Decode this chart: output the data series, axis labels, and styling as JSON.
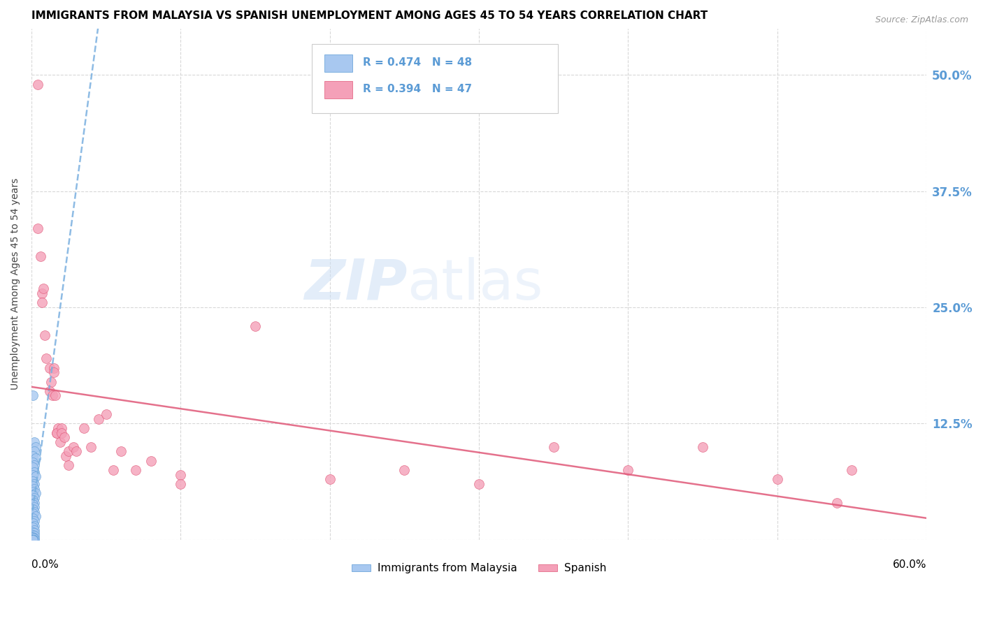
{
  "title": "IMMIGRANTS FROM MALAYSIA VS SPANISH UNEMPLOYMENT AMONG AGES 45 TO 54 YEARS CORRELATION CHART",
  "source": "Source: ZipAtlas.com",
  "ylabel": "Unemployment Among Ages 45 to 54 years",
  "ytick_vals": [
    0.0,
    0.125,
    0.25,
    0.375,
    0.5
  ],
  "ytick_labels": [
    "",
    "12.5%",
    "25.0%",
    "37.5%",
    "50.0%"
  ],
  "xlim": [
    0.0,
    0.6
  ],
  "ylim": [
    0.0,
    0.55
  ],
  "watermark_zip": "ZIP",
  "watermark_atlas": "atlas",
  "series": [
    {
      "label": "Immigrants from Malaysia",
      "color": "#a8c8f0",
      "edge_color": "#5b9bd5",
      "trend_color": "#7ab0e0",
      "trend_style": "--",
      "R": 0.474,
      "N": 48,
      "points": [
        [
          0.001,
          0.155
        ],
        [
          0.002,
          0.105
        ],
        [
          0.003,
          0.1
        ],
        [
          0.002,
          0.095
        ],
        [
          0.001,
          0.09
        ],
        [
          0.003,
          0.088
        ],
        [
          0.001,
          0.083
        ],
        [
          0.002,
          0.08
        ],
        [
          0.001,
          0.078
        ],
        [
          0.002,
          0.073
        ],
        [
          0.001,
          0.07
        ],
        [
          0.003,
          0.068
        ],
        [
          0.001,
          0.063
        ],
        [
          0.002,
          0.06
        ],
        [
          0.001,
          0.058
        ],
        [
          0.002,
          0.055
        ],
        [
          0.001,
          0.052
        ],
        [
          0.003,
          0.05
        ],
        [
          0.001,
          0.048
        ],
        [
          0.002,
          0.045
        ],
        [
          0.001,
          0.043
        ],
        [
          0.002,
          0.04
        ],
        [
          0.001,
          0.038
        ],
        [
          0.002,
          0.035
        ],
        [
          0.001,
          0.033
        ],
        [
          0.002,
          0.03
        ],
        [
          0.001,
          0.028
        ],
        [
          0.003,
          0.025
        ],
        [
          0.001,
          0.023
        ],
        [
          0.002,
          0.02
        ],
        [
          0.001,
          0.018
        ],
        [
          0.002,
          0.015
        ],
        [
          0.001,
          0.013
        ],
        [
          0.002,
          0.01
        ],
        [
          0.001,
          0.008
        ],
        [
          0.002,
          0.007
        ],
        [
          0.001,
          0.005
        ],
        [
          0.002,
          0.004
        ],
        [
          0.001,
          0.003
        ],
        [
          0.001,
          0.002
        ],
        [
          0.002,
          0.001
        ],
        [
          0.001,
          0.0
        ],
        [
          0.001,
          0.0
        ],
        [
          0.002,
          0.0
        ],
        [
          0.001,
          0.0
        ],
        [
          0.001,
          0.0
        ],
        [
          0.001,
          0.0
        ],
        [
          0.001,
          0.0
        ]
      ]
    },
    {
      "label": "Spanish",
      "color": "#f4a0b8",
      "edge_color": "#e05878",
      "trend_color": "#e05878",
      "trend_style": "-",
      "R": 0.394,
      "N": 47,
      "points": [
        [
          0.004,
          0.49
        ],
        [
          0.004,
          0.335
        ],
        [
          0.006,
          0.305
        ],
        [
          0.007,
          0.265
        ],
        [
          0.008,
          0.27
        ],
        [
          0.007,
          0.255
        ],
        [
          0.009,
          0.22
        ],
        [
          0.01,
          0.195
        ],
        [
          0.012,
          0.185
        ],
        [
          0.013,
          0.17
        ],
        [
          0.012,
          0.16
        ],
        [
          0.014,
          0.155
        ],
        [
          0.015,
          0.185
        ],
        [
          0.015,
          0.18
        ],
        [
          0.016,
          0.155
        ],
        [
          0.017,
          0.115
        ],
        [
          0.018,
          0.12
        ],
        [
          0.017,
          0.115
        ],
        [
          0.019,
          0.105
        ],
        [
          0.02,
          0.12
        ],
        [
          0.02,
          0.115
        ],
        [
          0.022,
          0.11
        ],
        [
          0.023,
          0.09
        ],
        [
          0.025,
          0.095
        ],
        [
          0.025,
          0.08
        ],
        [
          0.028,
          0.1
        ],
        [
          0.03,
          0.095
        ],
        [
          0.035,
          0.12
        ],
        [
          0.04,
          0.1
        ],
        [
          0.045,
          0.13
        ],
        [
          0.05,
          0.135
        ],
        [
          0.055,
          0.075
        ],
        [
          0.06,
          0.095
        ],
        [
          0.07,
          0.075
        ],
        [
          0.08,
          0.085
        ],
        [
          0.1,
          0.07
        ],
        [
          0.15,
          0.23
        ],
        [
          0.2,
          0.065
        ],
        [
          0.25,
          0.075
        ],
        [
          0.3,
          0.06
        ],
        [
          0.35,
          0.1
        ],
        [
          0.4,
          0.075
        ],
        [
          0.45,
          0.1
        ],
        [
          0.5,
          0.065
        ],
        [
          0.54,
          0.04
        ],
        [
          0.55,
          0.075
        ],
        [
          0.1,
          0.06
        ]
      ]
    }
  ],
  "legend_label_color": "#5b9bd5",
  "background_color": "#ffffff",
  "grid_color": "#d8d8d8",
  "title_fontsize": 11,
  "marker_size": 100
}
